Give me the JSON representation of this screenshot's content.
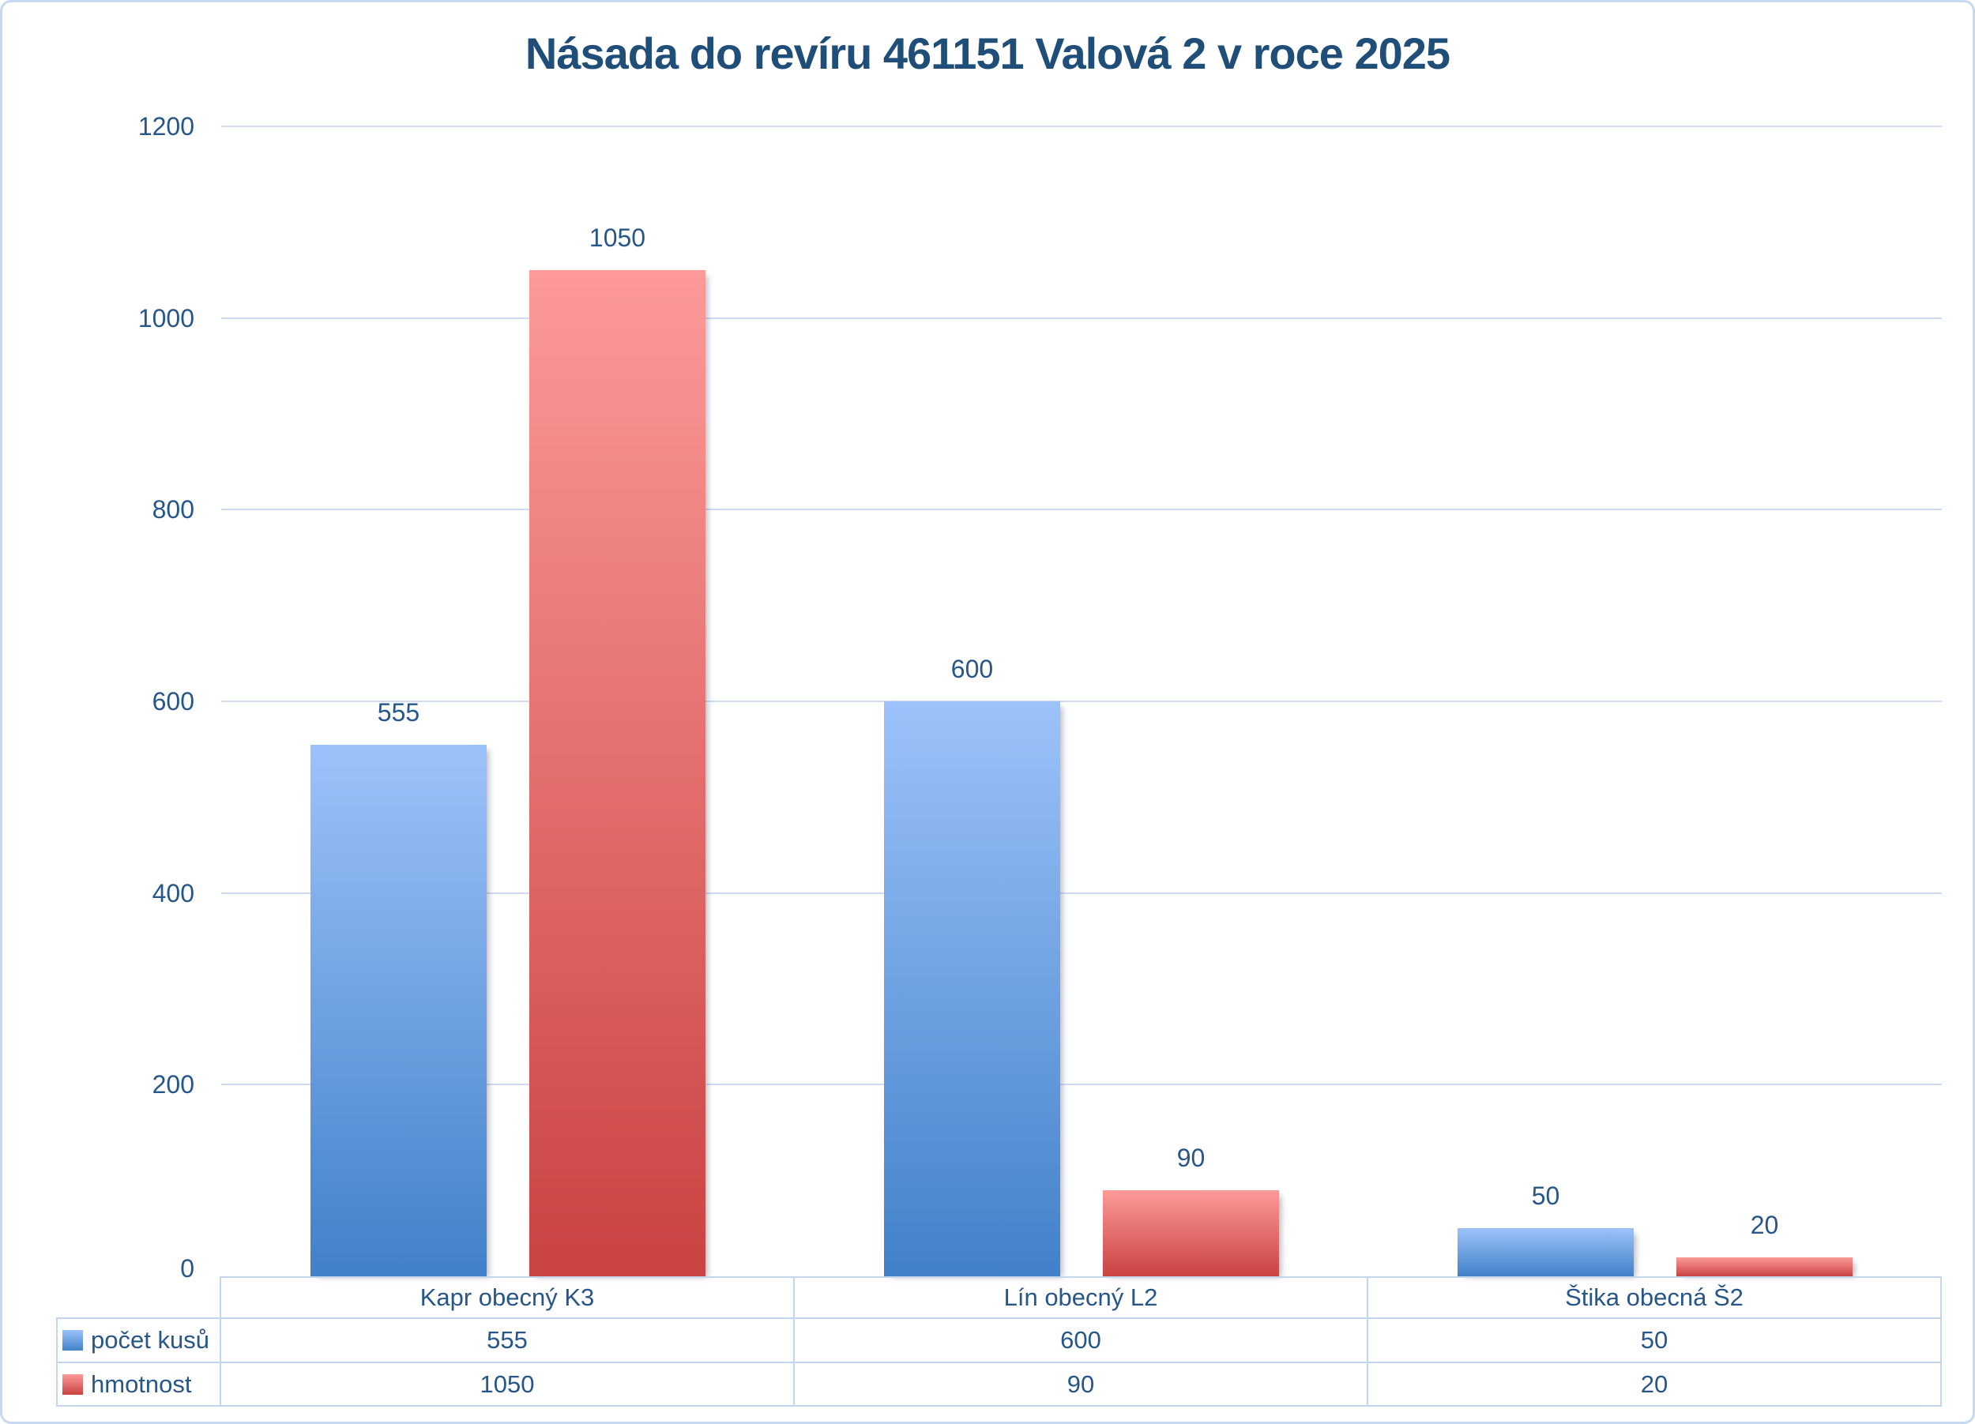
{
  "colors": {
    "title_text": "#1F4E79",
    "axis_text": "#27568A",
    "gridline": "#CEDCF2",
    "table_border": "#C3D6EE",
    "frame_border": "#C7D8F0",
    "series_blue_top": "#9DC2FA",
    "series_blue_bottom": "#4181C9",
    "series_red_top": "#FC9A98",
    "series_red_bottom": "#C94342"
  },
  "chart_data": {
    "type": "bar",
    "title": "Násada do revíru 461151 Valová 2 v roce 2025",
    "categories": [
      "Kapr obecný K3",
      "Lín obecný L2",
      "Štika obecná Š2"
    ],
    "series": [
      {
        "name": "počet kusů",
        "palette": "blue",
        "values": [
          555,
          600,
          50
        ]
      },
      {
        "name": "hmotnost",
        "palette": "red",
        "values": [
          1050,
          90,
          20
        ]
      }
    ],
    "xlabel": "",
    "ylabel": "",
    "ylim": [
      0,
      1200
    ],
    "yticks": [
      0,
      200,
      400,
      600,
      800,
      1000,
      1200
    ],
    "grid": true,
    "data_labels": true,
    "legend_position": "data-table-left-column",
    "data_table": true
  }
}
